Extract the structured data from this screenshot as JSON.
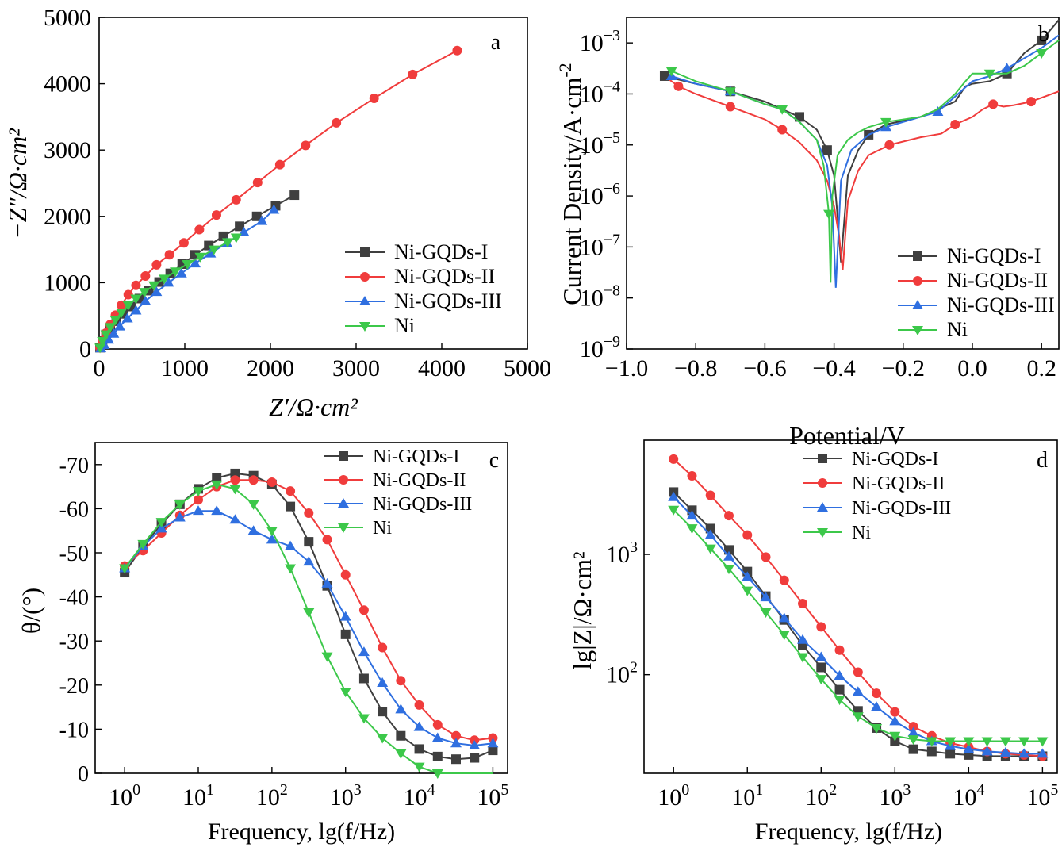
{
  "colors": {
    "Ni-GQDs-I": "#3f3f3f",
    "Ni-GQDs-II": "#f03c3c",
    "Ni-GQDs-III": "#2f6fe0",
    "Ni": "#3cc84a"
  },
  "chart_data": [
    {
      "id": "a",
      "type": "scatter",
      "panel_label": "a",
      "xlabel": "Z′/Ω·cm²",
      "ylabel": "−Z″/Ω·cm²",
      "xlim": [
        0,
        5000
      ],
      "ylim": [
        0,
        5000
      ],
      "x_ticks": [
        "0",
        "1000",
        "2000",
        "3000",
        "4000",
        "5000"
      ],
      "y_ticks": [
        "0",
        "1000",
        "2000",
        "3000",
        "4000",
        "5000"
      ],
      "legend_position": "lower-right",
      "series": [
        {
          "name": "Ni-GQDs-I",
          "marker": "square",
          "x": [
            10,
            40,
            80,
            130,
            200,
            280,
            370,
            470,
            580,
            700,
            830,
            970,
            1120,
            1280,
            1450,
            1640,
            1840,
            2060,
            2280
          ],
          "y": [
            20,
            120,
            220,
            310,
            420,
            530,
            640,
            760,
            880,
            1010,
            1140,
            1280,
            1420,
            1560,
            1700,
            1850,
            2000,
            2160,
            2320
          ]
        },
        {
          "name": "Ni-GQDs-II",
          "marker": "circle",
          "x": [
            10,
            40,
            80,
            130,
            190,
            260,
            340,
            430,
            540,
            670,
            820,
            990,
            1170,
            1370,
            1600,
            1850,
            2110,
            2410,
            2770,
            3210,
            3660,
            4180
          ],
          "y": [
            20,
            120,
            240,
            370,
            510,
            660,
            820,
            960,
            1100,
            1270,
            1420,
            1600,
            1800,
            2020,
            2250,
            2510,
            2780,
            3070,
            3410,
            3780,
            4140,
            4500
          ]
        },
        {
          "name": "Ni-GQDs-III",
          "marker": "triangle-up",
          "x": [
            20,
            60,
            110,
            170,
            240,
            330,
            430,
            540,
            670,
            810,
            960,
            1120,
            1300,
            1490,
            1690,
            1900,
            2040
          ],
          "y": [
            10,
            60,
            140,
            230,
            340,
            460,
            580,
            720,
            860,
            1000,
            1140,
            1290,
            1440,
            1600,
            1760,
            1930,
            2100
          ]
        },
        {
          "name": "Ni",
          "marker": "triangle-down",
          "x": [
            10,
            40,
            80,
            130,
            190,
            260,
            340,
            430,
            530,
            640,
            760,
            890,
            1030,
            1180,
            1340,
            1500,
            1600
          ],
          "y": [
            20,
            120,
            220,
            330,
            440,
            550,
            660,
            760,
            860,
            960,
            1060,
            1170,
            1280,
            1390,
            1500,
            1610,
            1680
          ]
        }
      ]
    },
    {
      "id": "b",
      "type": "line",
      "panel_label": "b",
      "xlabel": "Potential/V",
      "ylabel": "Current Density/A·cm⁻²",
      "xlim": [
        -1.0,
        0.25
      ],
      "ylim_log10": [
        -9,
        -2.5
      ],
      "y_scale": "log",
      "x_ticks": [
        -1.0,
        -0.8,
        -0.6,
        -0.4,
        -0.2,
        0.0,
        0.2
      ],
      "x_tick_labels": [
        "−1.0",
        "−0.8",
        "−0.6",
        "−0.4",
        "−0.2",
        "0.0",
        "0.2"
      ],
      "y_tick_exponents": [
        -9,
        -8,
        -7,
        -6,
        -5,
        -4,
        -3
      ],
      "legend_position": "lower-right",
      "series": [
        {
          "name": "Ni-GQDs-I",
          "marker": "square",
          "x": [
            -0.89,
            -0.8,
            -0.7,
            -0.6,
            -0.5,
            -0.45,
            -0.42,
            -0.4,
            -0.39,
            -0.38,
            -0.36,
            -0.33,
            -0.3,
            -0.25,
            -0.15,
            -0.1,
            -0.05,
            -0.02,
            0.0,
            0.05,
            0.1,
            0.15,
            0.2,
            0.25
          ],
          "y_log10": [
            -3.65,
            -3.8,
            -3.95,
            -4.15,
            -4.45,
            -4.7,
            -5.1,
            -5.6,
            -6.4,
            -7.3,
            -5.6,
            -5.1,
            -4.8,
            -4.6,
            -4.45,
            -4.3,
            -4.15,
            -3.85,
            -3.8,
            -3.75,
            -3.6,
            -3.2,
            -2.95,
            -2.55
          ],
          "marker_idx": [
            0,
            2,
            4,
            6,
            12,
            20,
            22
          ]
        },
        {
          "name": "Ni-GQDs-II",
          "marker": "circle",
          "x": [
            -0.88,
            -0.85,
            -0.8,
            -0.7,
            -0.6,
            -0.55,
            -0.5,
            -0.45,
            -0.42,
            -0.4,
            -0.385,
            -0.375,
            -0.36,
            -0.33,
            -0.3,
            -0.24,
            -0.15,
            -0.09,
            -0.05,
            0.0,
            0.03,
            0.06,
            0.09,
            0.12,
            0.17,
            0.25
          ],
          "y_log10": [
            -3.7,
            -3.85,
            -4.0,
            -4.25,
            -4.5,
            -4.7,
            -4.95,
            -5.3,
            -5.7,
            -6.2,
            -6.8,
            -7.45,
            -6.1,
            -5.5,
            -5.2,
            -5.0,
            -4.85,
            -4.78,
            -4.6,
            -4.45,
            -4.3,
            -4.2,
            -4.25,
            -4.22,
            -4.15,
            -3.95
          ],
          "marker_idx": [
            1,
            3,
            5,
            15,
            18,
            21,
            24
          ]
        },
        {
          "name": "Ni-GQDs-III",
          "marker": "triangle-up",
          "x": [
            -0.87,
            -0.8,
            -0.7,
            -0.6,
            -0.55,
            -0.5,
            -0.45,
            -0.42,
            -0.405,
            -0.395,
            -0.38,
            -0.35,
            -0.3,
            -0.25,
            -0.2,
            -0.1,
            -0.05,
            0.0,
            0.05,
            0.1,
            0.2,
            0.25
          ],
          "y_log10": [
            -3.65,
            -3.8,
            -3.95,
            -4.2,
            -4.3,
            -4.55,
            -4.9,
            -5.4,
            -6.2,
            -7.8,
            -5.7,
            -5.1,
            -4.8,
            -4.65,
            -4.55,
            -4.35,
            -4.05,
            -3.75,
            -3.65,
            -3.5,
            -3.1,
            -2.85
          ],
          "marker_idx": [
            0,
            2,
            13,
            15,
            19
          ]
        },
        {
          "name": "Ni",
          "marker": "triangle-down",
          "x": [
            -0.87,
            -0.8,
            -0.7,
            -0.6,
            -0.55,
            -0.5,
            -0.45,
            -0.43,
            -0.415,
            -0.41,
            -0.405,
            -0.39,
            -0.36,
            -0.33,
            -0.3,
            -0.25,
            -0.15,
            -0.1,
            -0.05,
            -0.02,
            0.0,
            0.05,
            0.1,
            0.15,
            0.2,
            0.25
          ],
          "y_log10": [
            -3.55,
            -3.75,
            -3.95,
            -4.2,
            -4.3,
            -4.55,
            -4.9,
            -5.4,
            -6.35,
            -7.7,
            -6.0,
            -5.2,
            -4.9,
            -4.75,
            -4.65,
            -4.55,
            -4.45,
            -4.3,
            -4.0,
            -3.75,
            -3.6,
            -3.6,
            -3.6,
            -3.45,
            -3.2,
            -2.95
          ],
          "marker_idx": [
            0,
            2,
            4,
            8,
            15,
            21,
            24
          ]
        }
      ]
    },
    {
      "id": "c",
      "type": "line",
      "panel_label": "c",
      "xlabel": "Frequency, lg(f/Hz)",
      "ylabel": "θ/(°)",
      "xlim_log10": [
        -0.4,
        5.2
      ],
      "x_scale": "log",
      "ylim": [
        0,
        -75
      ],
      "x_tick_exponents": [
        0,
        1,
        2,
        3,
        4,
        5
      ],
      "y_ticks": [
        0,
        -10,
        -20,
        -30,
        -40,
        -50,
        -60,
        -70
      ],
      "y_tick_labels": [
        "0",
        "-10",
        "-20",
        "-30",
        "-40",
        "-50",
        "-60",
        "-70"
      ],
      "legend_position": "top-right",
      "series": [
        {
          "name": "Ni-GQDs-I",
          "marker": "square",
          "log10_f": [
            0,
            0.25,
            0.5,
            0.75,
            1.0,
            1.25,
            1.5,
            1.75,
            2.0,
            2.25,
            2.5,
            2.75,
            3.0,
            3.25,
            3.5,
            3.75,
            4.0,
            4.25,
            4.5,
            4.75,
            5.0
          ],
          "y": [
            -45.5,
            -51.5,
            -56.5,
            -61,
            -64.5,
            -67,
            -68,
            -67.5,
            -65.5,
            -60.5,
            -52.5,
            -42.5,
            -31.5,
            -21.5,
            -14,
            -8.5,
            -5.5,
            -3.8,
            -3.2,
            -3.5,
            -5.2
          ]
        },
        {
          "name": "Ni-GQDs-II",
          "marker": "circle",
          "log10_f": [
            0,
            0.25,
            0.5,
            0.75,
            1.0,
            1.25,
            1.5,
            1.75,
            2.0,
            2.25,
            2.5,
            2.75,
            3.0,
            3.25,
            3.5,
            3.75,
            4.0,
            4.25,
            4.5,
            4.75,
            5.0
          ],
          "y": [
            -47,
            -50.5,
            -54.5,
            -58.5,
            -62,
            -65,
            -66.5,
            -66.5,
            -66,
            -64,
            -59,
            -53,
            -45,
            -37,
            -28.5,
            -21,
            -15.5,
            -11,
            -8.5,
            -7.5,
            -8
          ]
        },
        {
          "name": "Ni-GQDs-III",
          "marker": "triangle-up",
          "log10_f": [
            0,
            0.25,
            0.5,
            0.75,
            1.0,
            1.25,
            1.5,
            1.75,
            2.0,
            2.25,
            2.5,
            2.75,
            3.0,
            3.25,
            3.5,
            3.75,
            4.0,
            4.25,
            4.5,
            4.75,
            5.0
          ],
          "y": [
            -46.5,
            -51.5,
            -55.5,
            -58,
            -59.5,
            -59.5,
            -57.5,
            -55,
            -53,
            -51.5,
            -48,
            -43,
            -35.5,
            -27.5,
            -20.5,
            -14.5,
            -10.5,
            -8,
            -6.8,
            -6.3,
            -6.8
          ]
        },
        {
          "name": "Ni",
          "marker": "triangle-down",
          "log10_f": [
            0,
            0.25,
            0.5,
            0.75,
            1.0,
            1.25,
            1.5,
            1.75,
            2.0,
            2.25,
            2.5,
            2.75,
            3.0,
            3.25,
            3.5,
            3.75,
            4.0,
            4.25,
            4.5,
            4.75,
            5.0
          ],
          "y": [
            -46.5,
            -52,
            -57,
            -61,
            -64,
            -65.5,
            -64.5,
            -61,
            -55,
            -46.5,
            -36.5,
            -26.5,
            -18.5,
            -12.5,
            -8,
            -4.5,
            -1.5,
            0,
            0,
            0,
            0
          ],
          "marker_idx": [
            0,
            1,
            2,
            3,
            4,
            5,
            6,
            7,
            8,
            9,
            10,
            11,
            12,
            13,
            14,
            15,
            16,
            17
          ]
        }
      ]
    },
    {
      "id": "d",
      "type": "line",
      "panel_label": "d",
      "xlabel": "Frequency, lg(f/Hz)",
      "ylabel": "lg|Z|/Ω·cm²",
      "xlim_log10": [
        -0.4,
        5.2
      ],
      "x_scale": "log",
      "ylim_log10": [
        1.18,
        3.95
      ],
      "y_scale": "log",
      "x_tick_exponents": [
        0,
        1,
        2,
        3,
        4,
        5
      ],
      "y_tick_exponents": [
        2,
        3
      ],
      "legend_position": "top-center",
      "series": [
        {
          "name": "Ni-GQDs-I",
          "marker": "square",
          "log10_f": [
            0,
            0.25,
            0.5,
            0.75,
            1.0,
            1.25,
            1.5,
            1.75,
            2.0,
            2.25,
            2.5,
            2.75,
            3.0,
            3.25,
            3.5,
            3.75,
            4.0,
            4.25,
            4.5,
            4.75,
            5.0
          ],
          "y": [
            3300,
            2330,
            1640,
            1090,
            720,
            450,
            285,
            175,
            115,
            75,
            50,
            36,
            28,
            24,
            23,
            22,
            21.5,
            21,
            21,
            21,
            21
          ]
        },
        {
          "name": "Ni-GQDs-II",
          "marker": "circle",
          "log10_f": [
            0,
            0.25,
            0.5,
            0.75,
            1.0,
            1.25,
            1.5,
            1.75,
            2.0,
            2.25,
            2.5,
            2.75,
            3.0,
            3.25,
            3.5,
            3.75,
            4.0,
            4.25,
            4.5,
            4.75,
            5.0
          ],
          "y": [
            6200,
            4500,
            3100,
            2100,
            1450,
            950,
            610,
            390,
            250,
            160,
            105,
            70,
            49,
            37,
            31,
            27,
            25,
            23,
            22,
            21.5,
            21
          ]
        },
        {
          "name": "Ni-GQDs-III",
          "marker": "triangle-up",
          "log10_f": [
            0,
            0.25,
            0.5,
            0.75,
            1.0,
            1.25,
            1.5,
            1.75,
            2.0,
            2.25,
            2.5,
            2.75,
            3.0,
            3.25,
            3.5,
            3.75,
            4.0,
            4.25,
            4.5,
            4.75,
            5.0
          ],
          "y": [
            3000,
            2100,
            1450,
            960,
            650,
            440,
            295,
            195,
            140,
            98,
            72,
            54,
            41,
            33,
            28,
            25.5,
            24,
            23,
            22.5,
            22,
            22
          ]
        },
        {
          "name": "Ni",
          "marker": "triangle-down",
          "log10_f": [
            0,
            0.25,
            0.5,
            0.75,
            1.0,
            1.25,
            1.5,
            1.75,
            2.0,
            2.25,
            2.5,
            2.75,
            3.0,
            3.25,
            3.5,
            3.75,
            4.0,
            4.25,
            4.5,
            4.75,
            5.0
          ],
          "y": [
            2350,
            1650,
            1120,
            760,
            500,
            330,
            215,
            140,
            92,
            62,
            45,
            36,
            31,
            29,
            28,
            28,
            28,
            28,
            28,
            28,
            28
          ]
        }
      ]
    }
  ]
}
